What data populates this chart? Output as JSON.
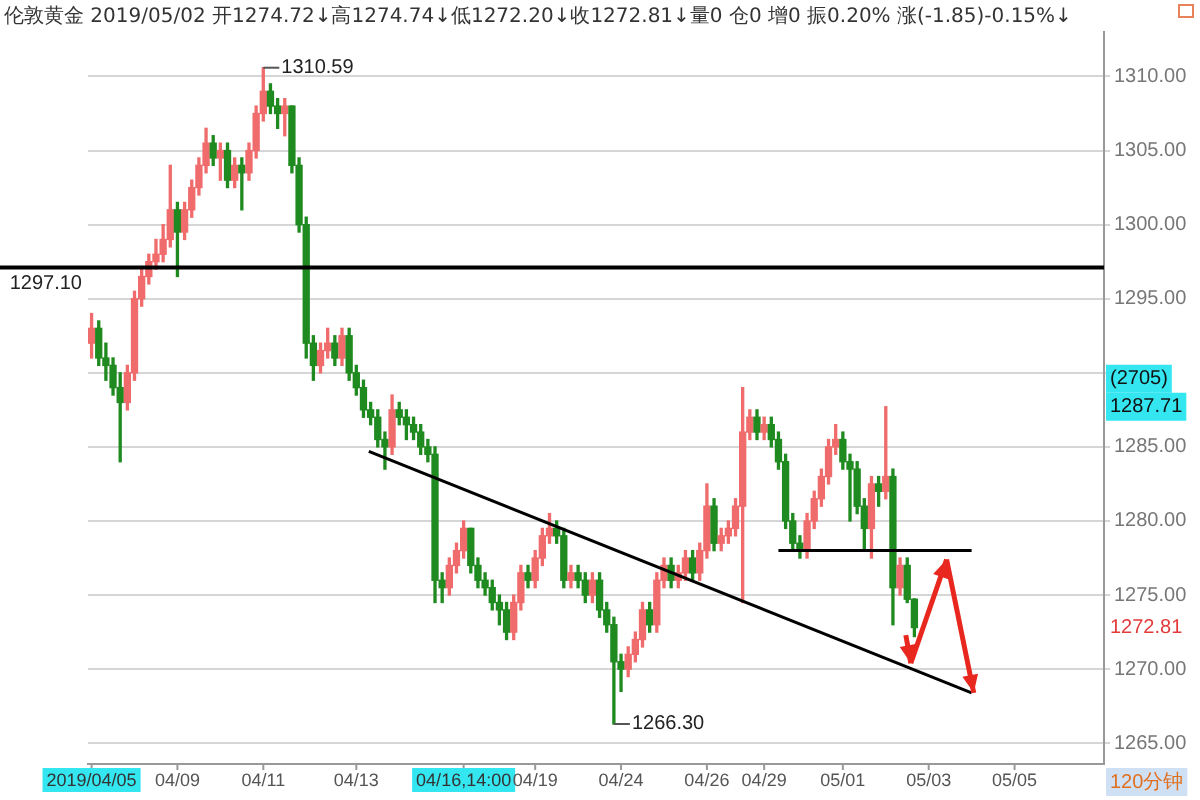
{
  "chart_data": {
    "type": "candlestick",
    "title": "伦敦黄金 2019/05/02 开1274.72↓高1274.74↓低1272.20↓收1272.81↓量0 仓0 增0 振0.20% 涨(-1.85)-0.15%↓",
    "categories": [
      "2019/04/05",
      null,
      null,
      null,
      null,
      null,
      null,
      null,
      null,
      null,
      null,
      null,
      "04/09",
      null,
      null,
      null,
      null,
      null,
      null,
      null,
      null,
      null,
      null,
      null,
      "04/11",
      null,
      null,
      null,
      null,
      null,
      null,
      null,
      null,
      null,
      null,
      null,
      null,
      "04/13",
      null,
      null,
      null,
      null,
      null,
      null,
      null,
      null,
      null,
      null,
      null,
      null,
      null,
      null,
      "04/16,14:00",
      null,
      null,
      null,
      null,
      null,
      null,
      null,
      null,
      null,
      "04/19",
      null,
      null,
      null,
      null,
      null,
      null,
      null,
      null,
      null,
      null,
      null,
      "04/24",
      null,
      null,
      null,
      null,
      null,
      null,
      null,
      null,
      null,
      null,
      null,
      "04/26",
      null,
      null,
      null,
      null,
      null,
      null,
      null,
      "04/29",
      null,
      null,
      null,
      null,
      null,
      null,
      null,
      null,
      null,
      null,
      "05/01",
      null,
      null,
      null,
      null,
      null,
      null,
      null,
      null,
      null,
      null,
      null,
      "05/03",
      null,
      null,
      null,
      null,
      null,
      null,
      null,
      null,
      null,
      null,
      null,
      "05/05",
      null,
      null,
      null,
      null,
      null,
      null,
      null,
      null,
      null,
      null,
      null,
      null
    ],
    "ohlc": [
      [
        1292,
        1294,
        1291,
        1293
      ],
      [
        1293,
        1293.5,
        1290.5,
        1291
      ],
      [
        1291,
        1292,
        1289.5,
        1290.5
      ],
      [
        1290.5,
        1291,
        1288.5,
        1289
      ],
      [
        1289,
        1290,
        1284,
        1288
      ],
      [
        1288,
        1290.5,
        1287.5,
        1290
      ],
      [
        1290,
        1295.5,
        1289.5,
        1295
      ],
      [
        1295,
        1297,
        1294.5,
        1296.5
      ],
      [
        1296.5,
        1298,
        1296,
        1297.5
      ],
      [
        1297.5,
        1299,
        1297,
        1298
      ],
      [
        1298,
        1300,
        1297.5,
        1299
      ],
      [
        1299,
        1304,
        1298.5,
        1301
      ],
      [
        1301,
        1301.5,
        1296.5,
        1299.5
      ],
      [
        1299.5,
        1301.5,
        1299,
        1301
      ],
      [
        1301,
        1303,
        1300.5,
        1302.5
      ],
      [
        1302.5,
        1304.5,
        1302,
        1304
      ],
      [
        1304,
        1306.5,
        1303.5,
        1305.5
      ],
      [
        1305.5,
        1306,
        1304,
        1304.5
      ],
      [
        1304.5,
        1305.5,
        1303,
        1305
      ],
      [
        1305,
        1305.5,
        1302.5,
        1303
      ],
      [
        1303,
        1304.5,
        1302.5,
        1304
      ],
      [
        1304,
        1304.5,
        1301,
        1303.5
      ],
      [
        1303.5,
        1305.5,
        1303,
        1305
      ],
      [
        1305,
        1308,
        1304.5,
        1307.5
      ],
      [
        1307.5,
        1310.59,
        1307,
        1309
      ],
      [
        1309,
        1309.5,
        1307.5,
        1308
      ],
      [
        1308,
        1308.5,
        1306.5,
        1307.5
      ],
      [
        1307.5,
        1308.5,
        1306,
        1308
      ],
      [
        1308,
        1308,
        1303.5,
        1304
      ],
      [
        1304,
        1304.5,
        1299.5,
        1300
      ],
      [
        1300,
        1300.5,
        1291,
        1292
      ],
      [
        1292,
        1292.5,
        1289.5,
        1290.5
      ],
      [
        1290.5,
        1292,
        1290,
        1291.5
      ],
      [
        1291.5,
        1293,
        1291,
        1292
      ],
      [
        1292,
        1292.5,
        1290.5,
        1291
      ],
      [
        1291,
        1293,
        1290.5,
        1292.5
      ],
      [
        1292.5,
        1293,
        1289.5,
        1290
      ],
      [
        1290,
        1290.5,
        1288.5,
        1289
      ],
      [
        1289,
        1289.5,
        1287,
        1287.5
      ],
      [
        1287.5,
        1288,
        1286.5,
        1287
      ],
      [
        1287,
        1287.5,
        1285,
        1285.5
      ],
      [
        1285.5,
        1286,
        1283.5,
        1285
      ],
      [
        1285,
        1288.5,
        1284.5,
        1287.5
      ],
      [
        1287.5,
        1288,
        1286.5,
        1287
      ],
      [
        1287,
        1287.5,
        1285.5,
        1286.5
      ],
      [
        1286.5,
        1287,
        1285.5,
        1286
      ],
      [
        1286,
        1286.5,
        1284.5,
        1285
      ],
      [
        1285,
        1285.5,
        1284,
        1284.5
      ],
      [
        1284.5,
        1285,
        1274.5,
        1276
      ],
      [
        1276,
        1276.5,
        1274.5,
        1275.5
      ],
      [
        1275.5,
        1277.5,
        1275,
        1277
      ],
      [
        1277,
        1278.5,
        1276.5,
        1278
      ],
      [
        1278,
        1280,
        1277.5,
        1279.5
      ],
      [
        1279.5,
        1279.5,
        1276.5,
        1277
      ],
      [
        1277,
        1277.5,
        1275.5,
        1276
      ],
      [
        1276,
        1276.5,
        1275,
        1275.5
      ],
      [
        1275.5,
        1276,
        1274,
        1274.5
      ],
      [
        1274.5,
        1275,
        1273,
        1274
      ],
      [
        1274,
        1274.5,
        1272,
        1272.5
      ],
      [
        1272.5,
        1275,
        1272,
        1274.5
      ],
      [
        1274.5,
        1277,
        1274,
        1276.5
      ],
      [
        1276.5,
        1277,
        1275.5,
        1276
      ],
      [
        1276,
        1278,
        1275.5,
        1277.5
      ],
      [
        1277.5,
        1279.5,
        1277,
        1279
      ],
      [
        1279,
        1280.5,
        1278.5,
        1279.5
      ],
      [
        1279.5,
        1280,
        1278.5,
        1279
      ],
      [
        1279,
        1279.5,
        1275.5,
        1276
      ],
      [
        1276,
        1277,
        1275.5,
        1276.5
      ],
      [
        1276.5,
        1277,
        1275.5,
        1276
      ],
      [
        1276,
        1276.5,
        1274.5,
        1275
      ],
      [
        1275,
        1276.5,
        1274.5,
        1276
      ],
      [
        1276,
        1276.5,
        1273.5,
        1274
      ],
      [
        1274,
        1274.5,
        1272.5,
        1273
      ],
      [
        1273,
        1273.5,
        1266.3,
        1270.5
      ],
      [
        1270.5,
        1271,
        1268.5,
        1270
      ],
      [
        1270,
        1271.5,
        1269.5,
        1271
      ],
      [
        1271,
        1272.5,
        1270.5,
        1272
      ],
      [
        1272,
        1274.5,
        1271.5,
        1274
      ],
      [
        1274,
        1274.5,
        1272.5,
        1273
      ],
      [
        1273,
        1276.5,
        1272.5,
        1276
      ],
      [
        1276,
        1277.5,
        1275.5,
        1277
      ],
      [
        1277,
        1277.5,
        1275.5,
        1276
      ],
      [
        1276,
        1277,
        1275.5,
        1276.5
      ],
      [
        1276.5,
        1278,
        1276,
        1277.5
      ],
      [
        1277.5,
        1278,
        1276,
        1276.5
      ],
      [
        1276.5,
        1278.5,
        1276,
        1278
      ],
      [
        1278,
        1282.5,
        1277.5,
        1281
      ],
      [
        1281,
        1281.5,
        1278,
        1278.5
      ],
      [
        1278.5,
        1279.5,
        1278,
        1279
      ],
      [
        1279,
        1280,
        1278.5,
        1279.5
      ],
      [
        1279.5,
        1281.5,
        1279,
        1281
      ],
      [
        1281,
        1289,
        1274.5,
        1286
      ],
      [
        1286,
        1287.5,
        1285.5,
        1287
      ],
      [
        1287,
        1287.5,
        1285.5,
        1286
      ],
      [
        1286,
        1287,
        1285.5,
        1286.5
      ],
      [
        1286.5,
        1287,
        1285,
        1285.5
      ],
      [
        1285.5,
        1286,
        1283.5,
        1284
      ],
      [
        1284,
        1284.5,
        1279.5,
        1280
      ],
      [
        1280,
        1280.5,
        1278,
        1278.5
      ],
      [
        1278.5,
        1279,
        1277.5,
        1278
      ],
      [
        1278,
        1280.5,
        1277.5,
        1280
      ],
      [
        1280,
        1282,
        1279.5,
        1281.5
      ],
      [
        1281.5,
        1283.5,
        1281,
        1283
      ],
      [
        1283,
        1285.5,
        1282.5,
        1285
      ],
      [
        1285,
        1286.5,
        1284.5,
        1285.5
      ],
      [
        1285.5,
        1286,
        1283.5,
        1284
      ],
      [
        1284,
        1284.5,
        1280,
        1283.5
      ],
      [
        1283.5,
        1284,
        1280.5,
        1281
      ],
      [
        1281,
        1281.5,
        1278,
        1279.5
      ],
      [
        1279.5,
        1283,
        1277.5,
        1282.5
      ],
      [
        1282.5,
        1283,
        1281,
        1282
      ],
      [
        1282,
        1287.71,
        1281.5,
        1283
      ],
      [
        1283,
        1283.5,
        1273,
        1275.5
      ],
      [
        1275.5,
        1277.5,
        1275,
        1277
      ],
      [
        1277,
        1277.5,
        1274.5,
        1274.72
      ],
      [
        1274.72,
        1274.74,
        1272.2,
        1272.81
      ],
      null,
      null,
      null,
      null,
      null,
      null,
      null,
      null,
      null,
      null,
      null,
      null,
      null,
      null,
      null,
      null,
      null,
      null,
      null,
      null,
      null,
      null,
      null,
      null,
      null,
      null
    ],
    "ylim": [
      1263.6,
      1313
    ],
    "yticks": [
      {
        "value": 1265,
        "label": "1265.00"
      },
      {
        "value": 1270,
        "label": "1270.00"
      },
      {
        "value": 1275,
        "label": "1275.00"
      },
      {
        "value": 1280,
        "label": "1280.00"
      },
      {
        "value": 1285,
        "label": "1285.00"
      },
      {
        "value": 1290,
        "label": null
      },
      {
        "value": 1295,
        "label": "1295.00"
      },
      {
        "value": 1300,
        "label": "1300.00"
      },
      {
        "value": 1305,
        "label": "1305.00"
      },
      {
        "value": 1310,
        "label": "1310.00"
      }
    ],
    "grid": "y",
    "ref_lines": [
      {
        "axis": "y",
        "value": 1297.1,
        "label": "1297.10",
        "color": "#000000"
      }
    ],
    "annotations": [
      "1310.59",
      "1266.30",
      "1287.71",
      "1272.81",
      "(2705)",
      "120分钟"
    ]
  }
}
